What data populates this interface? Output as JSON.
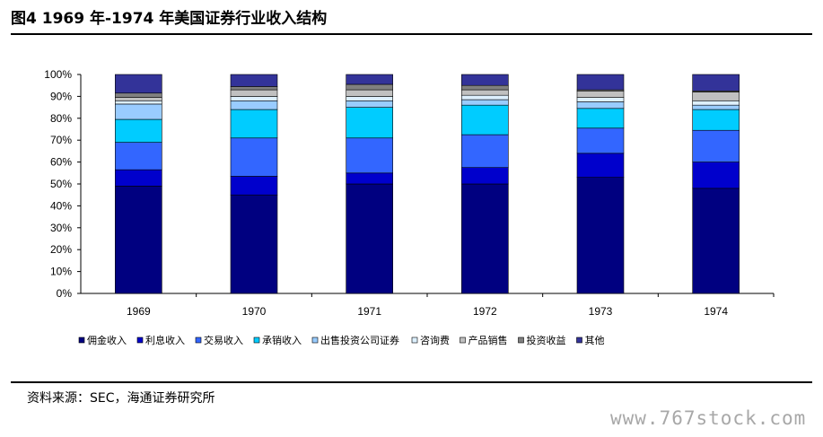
{
  "title": "图4  1969 年-1974 年美国证券行业收入结构",
  "source": "资料来源：SEC，海通证券研究所",
  "watermark": "www.767stock.com",
  "chart_data": {
    "type": "bar",
    "stacked": true,
    "percent": true,
    "categories": [
      "1969",
      "1970",
      "1971",
      "1972",
      "1973",
      "1974"
    ],
    "yticks": [
      "0%",
      "10%",
      "20%",
      "30%",
      "40%",
      "50%",
      "60%",
      "70%",
      "80%",
      "90%",
      "100%"
    ],
    "ylim": [
      0,
      100
    ],
    "legend_position": "bottom",
    "series": [
      {
        "name": "佣金收入",
        "color": "#000080",
        "values": [
          49,
          45,
          50,
          50,
          53,
          48
        ]
      },
      {
        "name": "利息收入",
        "color": "#0000CC",
        "values": [
          7.5,
          8.5,
          5,
          7.5,
          11,
          12
        ]
      },
      {
        "name": "交易收入",
        "color": "#3366FF",
        "values": [
          12.5,
          17.5,
          16,
          15,
          11.5,
          14.5
        ]
      },
      {
        "name": "承销收入",
        "color": "#00CCFF",
        "values": [
          10.5,
          13,
          14,
          13.5,
          9,
          9.5
        ]
      },
      {
        "name": "出售投资公司证券",
        "color": "#99CCFF",
        "values": [
          7,
          4,
          3,
          2.5,
          3,
          2
        ]
      },
      {
        "name": "咨询费",
        "color": "#DDF0FF",
        "values": [
          1.5,
          2,
          2,
          2,
          2,
          2
        ]
      },
      {
        "name": "产品销售",
        "color": "#C0C0C0",
        "values": [
          1.5,
          3,
          3,
          2.5,
          3,
          4
        ]
      },
      {
        "name": "投资收益",
        "color": "#808080",
        "values": [
          2,
          1.5,
          2.5,
          2,
          0.5,
          0.5
        ]
      },
      {
        "name": "其他",
        "color": "#333399",
        "values": [
          8.5,
          5.5,
          4.5,
          5,
          7,
          7.5
        ]
      }
    ]
  }
}
